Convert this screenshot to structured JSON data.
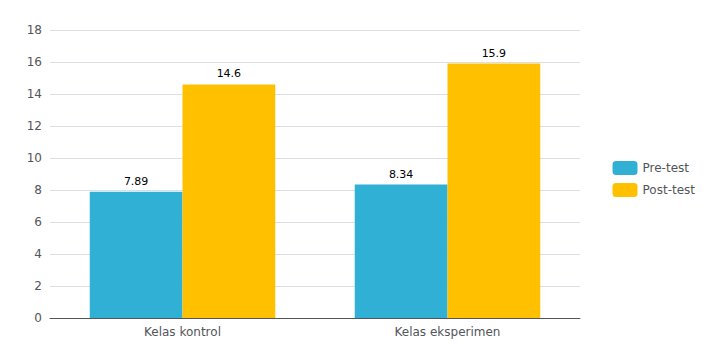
{
  "chart_data": {
    "type": "bar",
    "categories": [
      "Kelas kontrol",
      "Kelas eksperimen"
    ],
    "series": [
      {
        "name": "Pre-test",
        "color": "#31B0D5",
        "values": [
          7.89,
          8.34
        ]
      },
      {
        "name": "Post-test",
        "color": "#FFC000",
        "values": [
          14.6,
          15.9
        ]
      }
    ],
    "ylim": [
      0,
      18
    ],
    "yticks": [
      0,
      2,
      4,
      6,
      8,
      10,
      12,
      14,
      16,
      18
    ],
    "grid": true,
    "legend": "right",
    "data_labels": true
  }
}
